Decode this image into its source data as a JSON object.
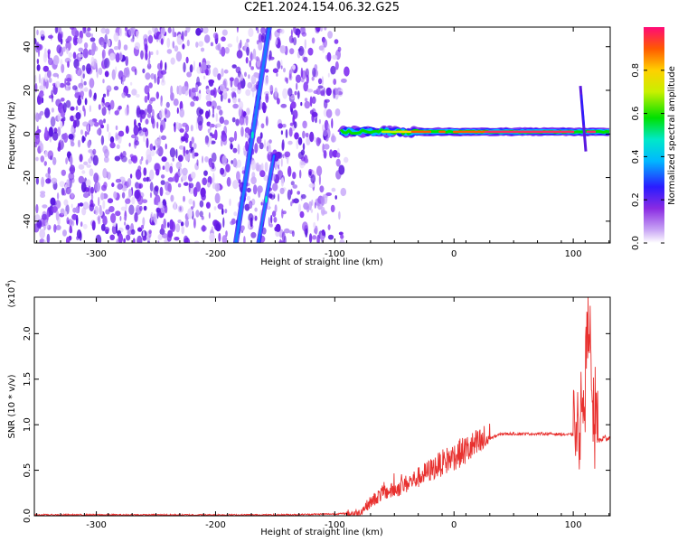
{
  "title": "C2E1.2024.154.06.32.G25",
  "chart_data": [
    {
      "type": "heatmap",
      "title": "C2E1.2024.154.06.32.G25",
      "xlabel": "Height of straight line (km)",
      "ylabel": "Frequency (Hz)",
      "xlim": [
        -352,
        131
      ],
      "ylim": [
        -50,
        49
      ],
      "x_ticks": [
        -300,
        -200,
        -100,
        0,
        100
      ],
      "y_ticks": [
        -40,
        -20,
        0,
        20,
        40
      ],
      "features": {
        "noise_region_x": [
          -352,
          -90
        ],
        "doppler_trace_x": [
          -95,
          131
        ],
        "doppler_trace_freq_hz": 1,
        "diagonal_trace_1": [
          [
            -183,
            -50
          ],
          [
            -155,
            49
          ]
        ],
        "diagonal_trace_2": [
          [
            -164,
            -50
          ],
          [
            -151,
            -10
          ]
        ],
        "spike_x": 106,
        "spike_freq_range_hz": [
          -8,
          22
        ]
      },
      "colorbar": {
        "label": "Normalized spectral amplitude",
        "range": [
          0,
          1
        ],
        "ticks": [
          "0.0",
          "0.2",
          "0.4",
          "0.6",
          "0.8"
        ]
      },
      "grid": false
    },
    {
      "type": "line",
      "xlabel": "Height of straight line (km)",
      "ylabel": "SNR (10 * v/v)",
      "yscale_label": "(x10",
      "yscale_exp": "4",
      "xlim": [
        -352,
        131
      ],
      "ylim": [
        0,
        2.4
      ],
      "x_ticks": [
        -300,
        -200,
        -100,
        0,
        100
      ],
      "y_ticks": [
        "0.0",
        "0.5",
        "1.0",
        "1.5",
        "2.0"
      ],
      "series": [
        {
          "color": "#e8312f",
          "x": [
            -352,
            -300,
            -250,
            -200,
            -150,
            -100,
            -80,
            -70,
            -60,
            -50,
            -40,
            -30,
            -20,
            -10,
            0,
            10,
            20,
            30,
            40,
            60,
            80,
            100,
            105,
            110,
            113,
            116,
            120,
            125,
            131
          ],
          "y": [
            0.01,
            0.01,
            0.01,
            0.01,
            0.01,
            0.02,
            0.03,
            0.15,
            0.25,
            0.28,
            0.35,
            0.42,
            0.5,
            0.58,
            0.65,
            0.72,
            0.78,
            0.85,
            0.9,
            0.9,
            0.9,
            0.89,
            0.95,
            1.4,
            2.35,
            1.1,
            0.8,
            0.85,
            0.86
          ]
        }
      ],
      "grid": false
    }
  ]
}
